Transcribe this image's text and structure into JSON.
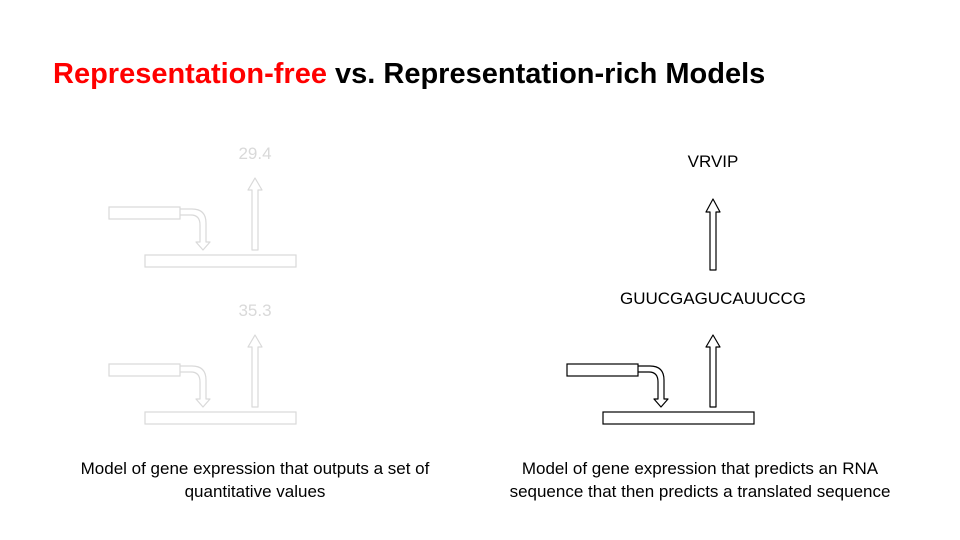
{
  "title": {
    "part1": "Representation-free",
    "part2": " vs. Representation-rich Models"
  },
  "colors": {
    "accent": "#ff0000",
    "faded": "#d9d9d9",
    "text": "#000000"
  },
  "left_panel": {
    "output_top": "29.4",
    "output_bottom": "35.3",
    "caption_line1": "Model of gene expression that outputs a set of",
    "caption_line2": "quantitative values"
  },
  "right_panel": {
    "rna_sequence": "GUUCGAGUCAUUCCG",
    "protein_sequence": "VRVIP",
    "caption_line1": "Model of gene expression that predicts an RNA",
    "caption_line2": "sequence that then predicts a translated sequence"
  }
}
